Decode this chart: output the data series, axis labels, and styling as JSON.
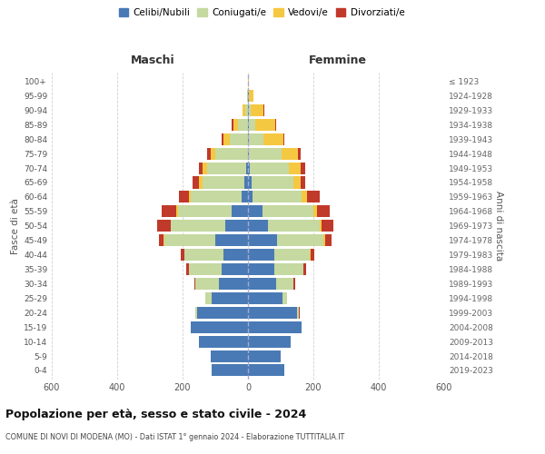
{
  "age_groups": [
    "0-4",
    "5-9",
    "10-14",
    "15-19",
    "20-24",
    "25-29",
    "30-34",
    "35-39",
    "40-44",
    "45-49",
    "50-54",
    "55-59",
    "60-64",
    "65-69",
    "70-74",
    "75-79",
    "80-84",
    "85-89",
    "90-94",
    "95-99",
    "100+"
  ],
  "birth_years": [
    "2019-2023",
    "2014-2018",
    "2009-2013",
    "2004-2008",
    "1999-2003",
    "1994-1998",
    "1989-1993",
    "1984-1988",
    "1979-1983",
    "1974-1978",
    "1969-1973",
    "1964-1968",
    "1959-1963",
    "1954-1958",
    "1949-1953",
    "1944-1948",
    "1939-1943",
    "1934-1938",
    "1929-1933",
    "1924-1928",
    "≤ 1923"
  ],
  "male": {
    "celibi": [
      110,
      115,
      150,
      175,
      155,
      110,
      90,
      80,
      75,
      100,
      70,
      50,
      20,
      10,
      5,
      0,
      0,
      0,
      0,
      0,
      0
    ],
    "coniugati": [
      0,
      0,
      0,
      0,
      5,
      20,
      70,
      100,
      120,
      155,
      165,
      165,
      155,
      130,
      120,
      100,
      55,
      30,
      8,
      2,
      0
    ],
    "vedovi": [
      0,
      0,
      0,
      0,
      0,
      0,
      0,
      0,
      0,
      2,
      2,
      5,
      5,
      10,
      15,
      15,
      20,
      15,
      10,
      2,
      0
    ],
    "divorziati": [
      0,
      0,
      0,
      0,
      0,
      0,
      5,
      10,
      10,
      15,
      40,
      45,
      30,
      20,
      10,
      10,
      5,
      5,
      0,
      0,
      0
    ]
  },
  "female": {
    "celibi": [
      110,
      100,
      130,
      165,
      150,
      105,
      85,
      80,
      80,
      90,
      60,
      45,
      15,
      10,
      5,
      2,
      2,
      2,
      2,
      2,
      0
    ],
    "coniugati": [
      0,
      0,
      0,
      0,
      5,
      15,
      55,
      90,
      110,
      140,
      160,
      155,
      150,
      130,
      120,
      100,
      45,
      20,
      5,
      0,
      0
    ],
    "vedovi": [
      0,
      0,
      0,
      0,
      0,
      0,
      0,
      0,
      2,
      5,
      5,
      10,
      15,
      20,
      35,
      50,
      60,
      60,
      40,
      15,
      2
    ],
    "divorziati": [
      0,
      0,
      0,
      0,
      2,
      0,
      5,
      8,
      10,
      20,
      35,
      40,
      40,
      15,
      15,
      10,
      5,
      5,
      2,
      0,
      0
    ]
  },
  "colors": {
    "celibi": "#4a7ab5",
    "coniugati": "#c5d9a0",
    "vedovi": "#f5c842",
    "divorziati": "#c0392b"
  },
  "legend_labels": [
    "Celibi/Nubili",
    "Coniugati/e",
    "Vedovi/e",
    "Divorziati/e"
  ],
  "legend_colors": [
    "#4a7ab5",
    "#c5d9a0",
    "#f5c842",
    "#c0392b"
  ],
  "title": "Popolazione per età, sesso e stato civile - 2024",
  "subtitle": "COMUNE DI NOVI DI MODENA (MO) - Dati ISTAT 1° gennaio 2024 - Elaborazione TUTTITALIA.IT",
  "xlabel_left": "Maschi",
  "xlabel_right": "Femmine",
  "ylabel_left": "Fasce di età",
  "ylabel_right": "Anni di nascita",
  "xlim": 600,
  "bg_color": "#ffffff",
  "grid_color": "#d0d0d0",
  "bar_height": 0.82
}
